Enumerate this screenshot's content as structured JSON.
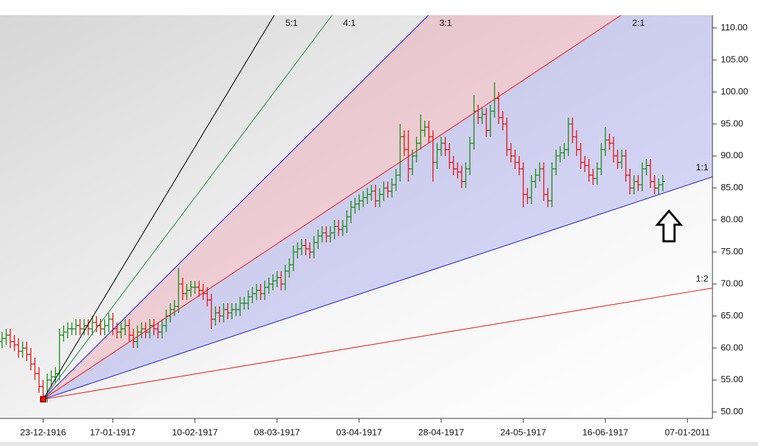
{
  "chart_data": {
    "type": "ohlc",
    "categories": [
      null,
      null,
      null,
      null,
      null,
      null,
      null,
      null,
      null,
      null,
      "23-12-1916",
      null,
      null,
      null,
      null,
      null,
      null,
      null,
      null,
      null,
      null,
      null,
      null,
      null,
      null,
      null,
      null,
      "17-01-1917",
      null,
      null,
      null,
      null,
      null,
      null,
      null,
      null,
      null,
      null,
      null,
      null,
      null,
      null,
      null,
      null,
      null,
      null,
      null,
      "10-02-1917",
      null,
      null,
      null,
      null,
      null,
      null,
      null,
      null,
      null,
      null,
      null,
      null,
      null,
      null,
      null,
      null,
      null,
      null,
      null,
      "08-03-1917",
      null,
      null,
      null,
      null,
      null,
      null,
      null,
      null,
      null,
      null,
      null,
      null,
      null,
      null,
      null,
      null,
      null,
      null,
      null,
      "03-04-1917",
      null,
      null,
      null,
      null,
      null,
      null,
      null,
      null,
      null,
      null,
      null,
      null,
      null,
      null,
      null,
      null,
      null,
      null,
      null,
      "28-04-1917",
      null,
      null,
      null,
      null,
      null,
      null,
      null,
      null,
      null,
      null,
      null,
      null,
      null,
      null,
      null,
      null,
      null,
      null,
      null,
      "24-05-1917",
      null,
      null,
      null,
      null,
      null,
      null,
      null,
      null,
      null,
      null,
      null,
      null,
      null,
      null,
      null,
      null,
      null,
      null,
      null,
      "16-06-1917",
      null,
      null,
      null,
      null,
      null,
      null,
      null,
      null,
      null,
      null,
      null,
      null,
      null,
      null,
      null,
      null,
      null,
      null,
      null,
      "07-01-2011"
    ],
    "open": [
      61,
      61.5,
      62,
      61,
      60.5,
      59.5,
      60,
      59,
      57.5,
      56,
      54,
      52.5,
      55,
      55.5,
      56,
      62,
      62.5,
      63,
      63,
      63.5,
      63,
      63.5,
      63,
      64,
      63.5,
      63,
      63.5,
      64.5,
      63,
      62.5,
      63,
      63.5,
      62,
      61,
      62.5,
      63,
      62.5,
      63.5,
      63,
      62.5,
      63.5,
      65,
      66,
      66.5,
      70,
      68.5,
      69,
      69.5,
      69.5,
      69,
      68.5,
      67.5,
      64.5,
      65.5,
      65,
      66,
      65.5,
      66,
      66,
      67,
      67,
      68,
      68.5,
      69,
      68.5,
      69.5,
      70,
      70.5,
      71,
      70,
      72,
      73,
      75,
      75.5,
      76,
      75.5,
      75,
      76.5,
      77.5,
      78,
      77.5,
      78,
      79,
      78.5,
      79,
      80.5,
      82,
      82.5,
      83,
      83.5,
      84,
      84.5,
      83,
      84,
      85,
      84.5,
      85.5,
      87,
      93,
      91,
      88,
      90,
      92,
      94,
      94.5,
      93,
      89,
      91,
      92,
      91,
      89,
      88,
      87.5,
      86,
      88,
      92,
      97,
      96,
      96.5,
      94,
      97,
      99,
      96,
      95,
      91,
      90,
      89,
      88,
      84,
      83.5,
      86,
      87,
      88,
      84,
      83,
      88,
      90,
      90.5,
      91,
      95,
      93,
      91,
      89,
      88.5,
      87,
      86.5,
      88,
      91,
      92.5,
      92,
      90,
      89,
      90,
      87,
      85,
      86,
      85.5,
      88,
      88.5,
      86,
      85,
      85.5,
      null,
      null,
      null,
      null,
      null,
      null
    ],
    "high": [
      62.5,
      63,
      63,
      62,
      61.5,
      61,
      61,
      60,
      58.5,
      57,
      55,
      56,
      56.5,
      57,
      63,
      63.5,
      64,
      64,
      64.5,
      64.5,
      64.5,
      64.5,
      65,
      65,
      64.5,
      64.5,
      65.5,
      65.5,
      64,
      64,
      64.5,
      64.5,
      63,
      63.5,
      64,
      64,
      64.5,
      64.5,
      64,
      64.5,
      66,
      67,
      67.5,
      72.5,
      71,
      70,
      70.5,
      70.5,
      70.5,
      70,
      69.5,
      68.5,
      66.5,
      66.5,
      67,
      67,
      67,
      67,
      68,
      68,
      69,
      69.5,
      70,
      70,
      70.5,
      71,
      71.5,
      72,
      72,
      73,
      74,
      76,
      76.5,
      77,
      77,
      76.5,
      77.5,
      78.5,
      79,
      79,
      79,
      80,
      80,
      80,
      81.5,
      83,
      83.5,
      84,
      84.5,
      85,
      85.5,
      85.5,
      85,
      86,
      86,
      86.5,
      88,
      95,
      94,
      94,
      91,
      93,
      96.5,
      95.5,
      95.5,
      94,
      92,
      93,
      93,
      92,
      90,
      89,
      88.5,
      89,
      93,
      99.5,
      98,
      97.5,
      97.5,
      98,
      101.5,
      100,
      97,
      96,
      92,
      91,
      90,
      89,
      85,
      87,
      88,
      89,
      89,
      85,
      89,
      91,
      91.5,
      92,
      96,
      96,
      94,
      92,
      90,
      89.5,
      88,
      89,
      92,
      94.5,
      93.5,
      93,
      91,
      91,
      91,
      88,
      87,
      87,
      89,
      89.5,
      89.5,
      87,
      86.5,
      87,
      null,
      null,
      null,
      null,
      null,
      null
    ],
    "low": [
      60,
      60.5,
      60,
      59.5,
      58.5,
      58.5,
      58,
      56.5,
      55,
      53,
      51.5,
      51.5,
      54,
      54.5,
      55,
      61,
      61.5,
      62,
      62,
      62,
      62,
      62,
      62,
      62.5,
      62,
      62,
      62.5,
      62,
      61.5,
      61.5,
      62,
      61,
      60,
      60,
      61.5,
      61.5,
      61.5,
      62,
      61.5,
      61.5,
      62.5,
      64,
      65,
      65.5,
      67.5,
      67.5,
      68,
      68.5,
      68,
      67.5,
      66.5,
      63,
      63.5,
      64,
      64,
      64.5,
      64.5,
      65,
      65,
      66,
      66,
      67,
      67.5,
      67.5,
      67.5,
      68.5,
      69,
      69.5,
      69,
      69,
      71,
      72,
      74,
      74.5,
      74.5,
      74,
      74,
      75.5,
      76.5,
      76.5,
      76.5,
      77,
      77.5,
      77.5,
      78,
      79.5,
      81,
      81.5,
      82,
      82.5,
      83,
      82,
      82,
      83,
      83.5,
      83.5,
      84.5,
      86,
      90,
      86,
      87,
      89,
      91,
      93,
      92,
      86,
      88,
      90,
      90,
      88,
      87,
      86.5,
      85,
      85,
      87,
      91,
      95,
      95,
      93,
      93,
      96,
      95,
      94,
      90,
      89,
      88,
      87,
      82,
      82.5,
      82.5,
      85,
      86,
      83,
      82,
      82,
      87,
      89,
      89.5,
      90,
      92,
      90,
      88,
      87.5,
      86,
      85.5,
      85.5,
      87,
      90,
      91,
      89,
      88,
      88,
      86,
      84,
      84,
      84.5,
      84.5,
      87,
      85,
      84,
      84,
      84.5,
      null,
      null,
      null,
      null,
      null,
      null
    ],
    "close": [
      61.5,
      62,
      61,
      60.5,
      59.5,
      60,
      59,
      57.5,
      56,
      54,
      52.5,
      55,
      55.5,
      56,
      62,
      62.5,
      63,
      63,
      63.5,
      63,
      63.5,
      63,
      64,
      63.5,
      63,
      63.5,
      64.5,
      63,
      62.5,
      63,
      63.5,
      62,
      61,
      62.5,
      63,
      62.5,
      63.5,
      63,
      62.5,
      63.5,
      65,
      66,
      66.5,
      70,
      68.5,
      69,
      69.5,
      69.5,
      69,
      68.5,
      67.5,
      64.5,
      65.5,
      65,
      66,
      65.5,
      66,
      66,
      67,
      67,
      68,
      68.5,
      69,
      68.5,
      69.5,
      70,
      70.5,
      71,
      70,
      72,
      73,
      75,
      75.5,
      76,
      75.5,
      75,
      76.5,
      77.5,
      78,
      77.5,
      78,
      79,
      78.5,
      79,
      80.5,
      82,
      82.5,
      83,
      83.5,
      84,
      84.5,
      83,
      84,
      85,
      84.5,
      85.5,
      87,
      93,
      91,
      88,
      90,
      92,
      94,
      94.5,
      93,
      89,
      91,
      92,
      91,
      89,
      88,
      87.5,
      86,
      88,
      92,
      97,
      96,
      96.5,
      94,
      97,
      99,
      96,
      95,
      91,
      90,
      89,
      88,
      84,
      83.5,
      86,
      87,
      88,
      84,
      83,
      88,
      90,
      90.5,
      91,
      95,
      93,
      91,
      89,
      88.5,
      87,
      86.5,
      88,
      91,
      92.5,
      92,
      90,
      89,
      90,
      87,
      85,
      86,
      85.5,
      88,
      88.5,
      86,
      85,
      85.5,
      86,
      null,
      null,
      null,
      null,
      null,
      null
    ],
    "up_color": "#1e8c1e",
    "down_color": "#e01818",
    "ylim": [
      49,
      112
    ],
    "yticks": [
      {
        "value": 50,
        "label": "50.00"
      },
      {
        "value": 55,
        "label": "55.00"
      },
      {
        "value": 60,
        "label": "60.00"
      },
      {
        "value": 65,
        "label": "65.00"
      },
      {
        "value": 70,
        "label": "70.00"
      },
      {
        "value": 75,
        "label": "75.00"
      },
      {
        "value": 80,
        "label": "80.00"
      },
      {
        "value": 85,
        "label": "85.00"
      },
      {
        "value": 90,
        "label": "90.00"
      },
      {
        "value": 95,
        "label": "95.00"
      },
      {
        "value": 100,
        "label": "100.00"
      },
      {
        "value": 105,
        "label": "105.00"
      },
      {
        "value": 110,
        "label": "110.00"
      }
    ],
    "gann": {
      "origin": {
        "index": 10,
        "value": 52
      },
      "unit_slope": 0.213,
      "lines": [
        {
          "label": "5:1",
          "ratio": 5,
          "color": "#000000"
        },
        {
          "label": "4:1",
          "ratio": 4,
          "color": "#2e8b57"
        },
        {
          "label": "3:1",
          "ratio": 3,
          "color": "#2222dd",
          "fill": "rgba(235,150,165,0.38)"
        },
        {
          "label": "2:1",
          "ratio": 2,
          "color": "#ee1c1c",
          "fill": "rgba(150,150,235,0.38)"
        },
        {
          "label": "1:1",
          "ratio": 1,
          "color": "#2222dd"
        },
        {
          "label": "1:2",
          "ratio": 0.5,
          "color": "#ee1c1c"
        }
      ]
    }
  }
}
